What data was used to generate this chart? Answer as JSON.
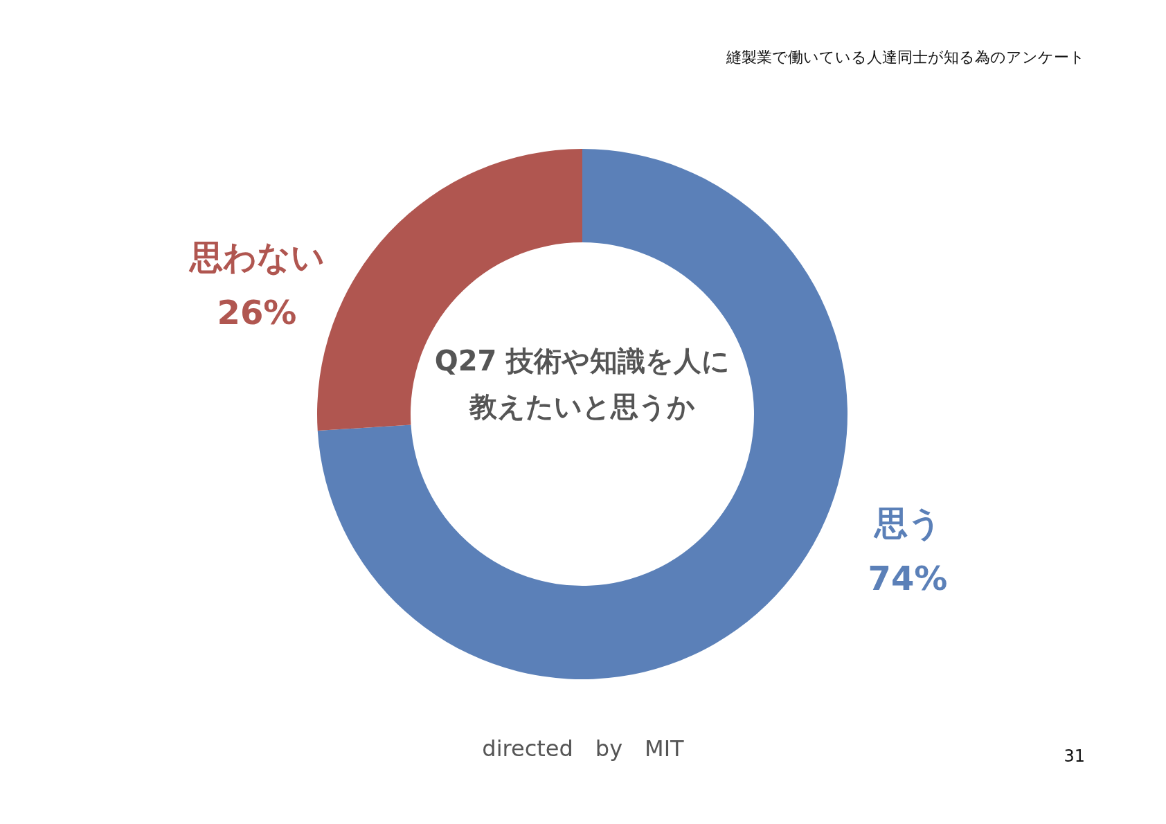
{
  "chart_data": {
    "type": "donut",
    "title": "Q27 技術や知識を人に教えたいと思うか",
    "categories": [
      "思う",
      "思わない"
    ],
    "values": [
      74,
      26
    ],
    "colors": [
      "#5b80b8",
      "#b05650"
    ],
    "value_labels": [
      "74%",
      "26%"
    ],
    "annotations": [
      "縫製業で働いている人達同士が知る為のアンケート",
      "directed　by　MIT",
      "31"
    ]
  }
}
